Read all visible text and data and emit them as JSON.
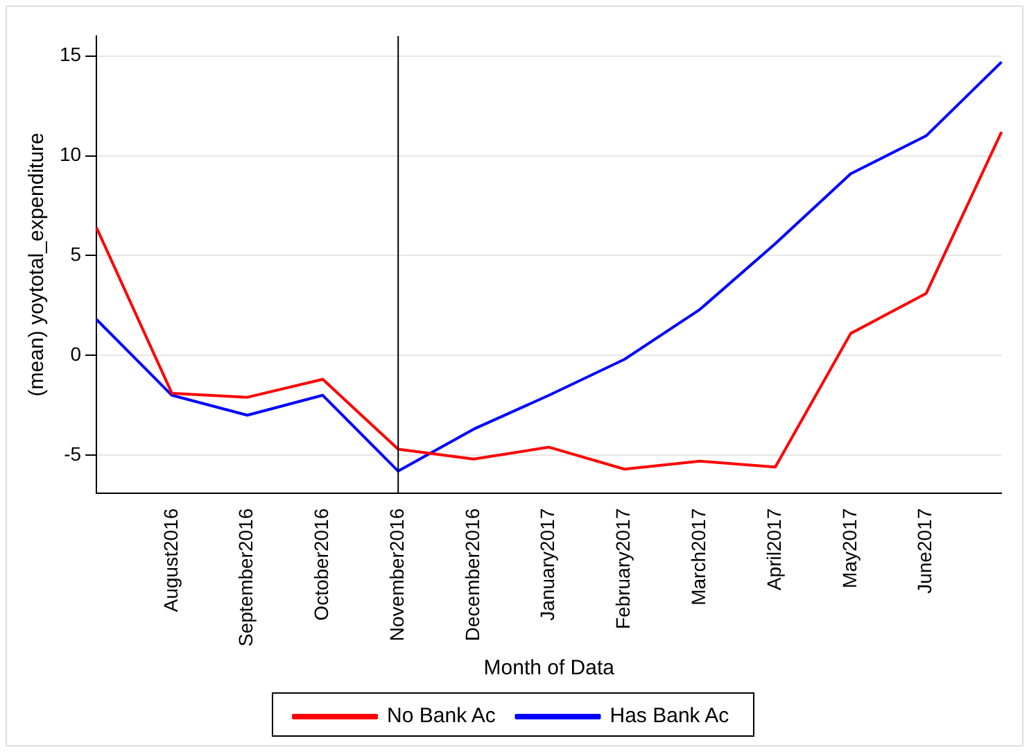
{
  "chart_data": {
    "type": "line",
    "xlabel": "Month of Data",
    "ylabel": "(mean) yoytotal_expenditure",
    "categories": [
      null,
      "August2016",
      "September2016",
      "October2016",
      "November2016",
      "December2016",
      "January2017",
      "February2017",
      "March2017",
      "April2017",
      "May2017",
      "June2017",
      null
    ],
    "series": [
      {
        "name": "No Bank Ac",
        "color": "#ff0000",
        "values": [
          6.4,
          -1.9,
          -2.1,
          -1.2,
          -4.7,
          -5.2,
          -4.6,
          -5.7,
          -5.3,
          -5.6,
          1.1,
          3.1,
          11.2
        ]
      },
      {
        "name": "Has Bank Ac",
        "color": "#0000ff",
        "values": [
          1.8,
          -2.0,
          -3.0,
          -2.0,
          -5.8,
          -3.7,
          -2.0,
          -0.2,
          2.3,
          5.6,
          9.1,
          11.0,
          14.7
        ]
      }
    ],
    "ylim": [
      -6.9,
      16
    ],
    "yticks": [
      -5,
      0,
      5,
      10,
      15
    ],
    "grid": "y",
    "legend": "bottom",
    "marker": "none",
    "line_style": "solid",
    "ref_lines": [
      {
        "axis": "x",
        "value": "November2016",
        "color": "#000000"
      }
    ]
  }
}
